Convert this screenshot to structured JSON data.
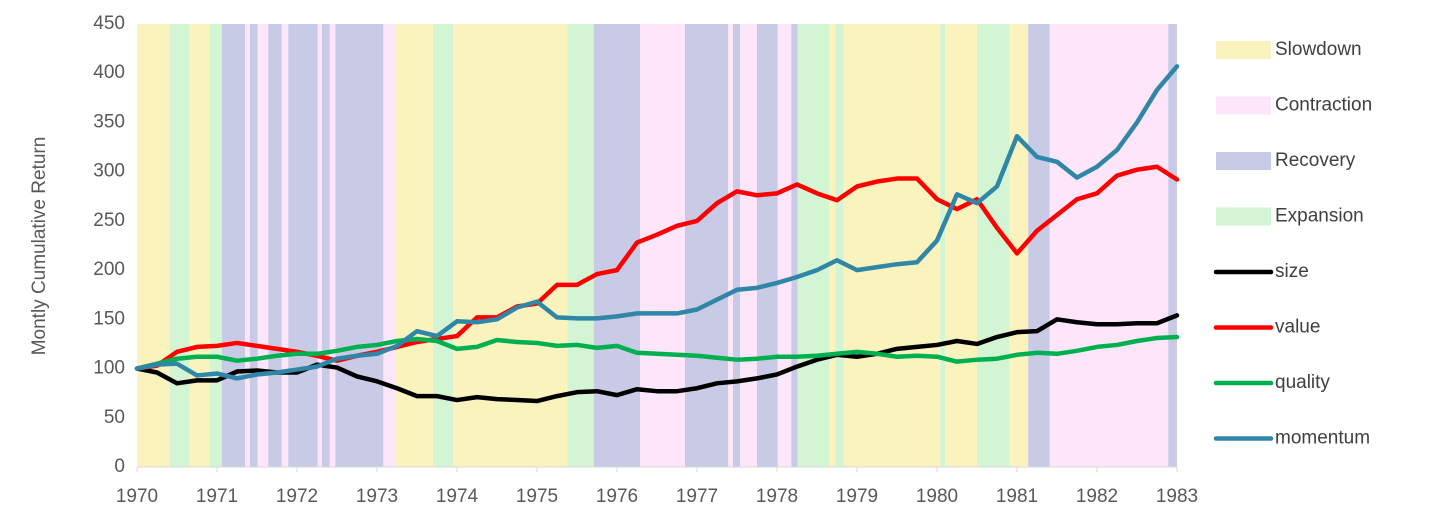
{
  "chart_data": {
    "type": "line",
    "ylabel": "Montly Cumulative Return",
    "xlim": [
      1970,
      1983
    ],
    "xticks": [
      1970,
      1971,
      1972,
      1973,
      1974,
      1975,
      1976,
      1977,
      1978,
      1979,
      1980,
      1981,
      1982,
      1983
    ],
    "ylim": [
      0,
      450
    ],
    "yticks": [
      0,
      50,
      100,
      150,
      200,
      250,
      300,
      350,
      400,
      450
    ],
    "regimes": [
      {
        "name": "Slowdown",
        "color": "#fbf3bd"
      },
      {
        "name": "Contraction",
        "color": "#fde6fa"
      },
      {
        "name": "Recovery",
        "color": "#c9cbe6"
      },
      {
        "name": "Expansion",
        "color": "#d4f5d3"
      }
    ],
    "bands": [
      {
        "regime": "Slowdown",
        "start": 1970.0,
        "end": 1970.41
      },
      {
        "regime": "Expansion",
        "start": 1970.41,
        "end": 1970.66
      },
      {
        "regime": "Slowdown",
        "start": 1970.66,
        "end": 1970.91
      },
      {
        "regime": "Expansion",
        "start": 1970.91,
        "end": 1971.06
      },
      {
        "regime": "Recovery",
        "start": 1971.06,
        "end": 1971.35
      },
      {
        "regime": "Contraction",
        "start": 1971.35,
        "end": 1971.41
      },
      {
        "regime": "Recovery",
        "start": 1971.41,
        "end": 1971.51
      },
      {
        "regime": "Contraction",
        "start": 1971.51,
        "end": 1971.64
      },
      {
        "regime": "Recovery",
        "start": 1971.64,
        "end": 1971.81
      },
      {
        "regime": "Contraction",
        "start": 1971.81,
        "end": 1971.89
      },
      {
        "regime": "Recovery",
        "start": 1971.89,
        "end": 1972.26
      },
      {
        "regime": "Contraction",
        "start": 1972.26,
        "end": 1972.31
      },
      {
        "regime": "Recovery",
        "start": 1972.31,
        "end": 1972.41
      },
      {
        "regime": "Contraction",
        "start": 1972.41,
        "end": 1972.48
      },
      {
        "regime": "Recovery",
        "start": 1972.48,
        "end": 1973.08
      },
      {
        "regime": "Contraction",
        "start": 1973.08,
        "end": 1973.23
      },
      {
        "regime": "Slowdown",
        "start": 1973.23,
        "end": 1973.7
      },
      {
        "regime": "Expansion",
        "start": 1973.7,
        "end": 1973.95
      },
      {
        "regime": "Slowdown",
        "start": 1973.95,
        "end": 1975.38
      },
      {
        "regime": "Expansion",
        "start": 1975.38,
        "end": 1975.71
      },
      {
        "regime": "Recovery",
        "start": 1975.71,
        "end": 1976.29
      },
      {
        "regime": "Contraction",
        "start": 1976.29,
        "end": 1976.85
      },
      {
        "regime": "Recovery",
        "start": 1976.85,
        "end": 1977.39
      },
      {
        "regime": "Contraction",
        "start": 1977.39,
        "end": 1977.45
      },
      {
        "regime": "Recovery",
        "start": 1977.45,
        "end": 1977.54
      },
      {
        "regime": "Contraction",
        "start": 1977.54,
        "end": 1977.75
      },
      {
        "regime": "Recovery",
        "start": 1977.75,
        "end": 1978.01
      },
      {
        "regime": "Contraction",
        "start": 1978.01,
        "end": 1978.18
      },
      {
        "regime": "Recovery",
        "start": 1978.18,
        "end": 1978.26
      },
      {
        "regime": "Expansion",
        "start": 1978.26,
        "end": 1978.66
      },
      {
        "regime": "Slowdown",
        "start": 1978.66,
        "end": 1978.73
      },
      {
        "regime": "Expansion",
        "start": 1978.73,
        "end": 1978.83
      },
      {
        "regime": "Slowdown",
        "start": 1978.83,
        "end": 1980.04
      },
      {
        "regime": "Expansion",
        "start": 1980.04,
        "end": 1980.1
      },
      {
        "regime": "Slowdown",
        "start": 1980.1,
        "end": 1980.5
      },
      {
        "regime": "Expansion",
        "start": 1980.5,
        "end": 1980.91
      },
      {
        "regime": "Slowdown",
        "start": 1980.91,
        "end": 1981.14
      },
      {
        "regime": "Recovery",
        "start": 1981.14,
        "end": 1981.41
      },
      {
        "regime": "Contraction",
        "start": 1981.41,
        "end": 1982.89
      },
      {
        "regime": "Recovery",
        "start": 1982.89,
        "end": 1983.0
      }
    ],
    "x": [
      1970,
      1970.25,
      1970.5,
      1970.75,
      1971,
      1971.25,
      1971.5,
      1971.75,
      1972,
      1972.25,
      1972.5,
      1972.75,
      1973,
      1973.25,
      1973.5,
      1973.75,
      1974,
      1974.25,
      1974.5,
      1974.75,
      1975,
      1975.25,
      1975.5,
      1975.75,
      1976,
      1976.25,
      1976.5,
      1976.75,
      1977,
      1977.25,
      1977.5,
      1977.75,
      1978,
      1978.25,
      1978.5,
      1978.75,
      1979,
      1979.25,
      1979.5,
      1979.75,
      1980,
      1980.25,
      1980.5,
      1980.75,
      1981,
      1981.25,
      1981.5,
      1981.75,
      1982,
      1982.25,
      1982.5,
      1982.75,
      1983
    ],
    "series": [
      {
        "name": "size",
        "color": "#000000",
        "values": [
          100,
          96,
          85,
          88,
          88,
          97,
          98,
          96,
          96,
          104,
          101,
          92,
          87,
          80,
          72,
          72,
          68,
          71,
          69,
          68,
          67,
          72,
          76,
          77,
          73,
          79,
          77,
          77,
          80,
          85,
          87,
          90,
          94,
          102,
          109,
          114,
          112,
          115,
          120,
          122,
          124,
          128,
          125,
          132,
          137,
          138,
          150,
          147,
          145,
          145,
          146,
          146,
          154
        ]
      },
      {
        "name": "value",
        "color": "#ff0000",
        "values": [
          100,
          103,
          117,
          122,
          123,
          126,
          123,
          120,
          117,
          113,
          108,
          113,
          117,
          122,
          127,
          130,
          133,
          152,
          152,
          163,
          166,
          185,
          185,
          196,
          200,
          228,
          236,
          245,
          250,
          268,
          280,
          276,
          278,
          287,
          278,
          271,
          285,
          290,
          293,
          293,
          272,
          262,
          272,
          243,
          217,
          240,
          256,
          272,
          278,
          296,
          302,
          305,
          292
        ]
      },
      {
        "name": "quality",
        "color": "#00b050",
        "values": [
          100,
          105,
          110,
          112,
          112,
          108,
          110,
          113,
          115,
          115,
          118,
          122,
          124,
          128,
          130,
          128,
          120,
          122,
          129,
          127,
          126,
          123,
          124,
          121,
          123,
          116,
          115,
          114,
          113,
          111,
          109,
          110,
          112,
          112,
          113,
          115,
          117,
          115,
          112,
          113,
          112,
          107,
          109,
          110,
          114,
          116,
          115,
          118,
          122,
          124,
          128,
          131,
          132
        ]
      },
      {
        "name": "momentum",
        "color": "#2f86a6",
        "values": [
          100,
          104,
          105,
          93,
          95,
          90,
          94,
          96,
          99,
          102,
          110,
          113,
          115,
          123,
          138,
          133,
          148,
          147,
          150,
          162,
          168,
          152,
          151,
          151,
          153,
          156,
          156,
          156,
          160,
          170,
          180,
          182,
          187,
          193,
          200,
          210,
          200,
          203,
          206,
          208,
          230,
          277,
          268,
          285,
          336,
          315,
          310,
          294,
          305,
          322,
          350,
          383,
          407
        ]
      }
    ]
  }
}
